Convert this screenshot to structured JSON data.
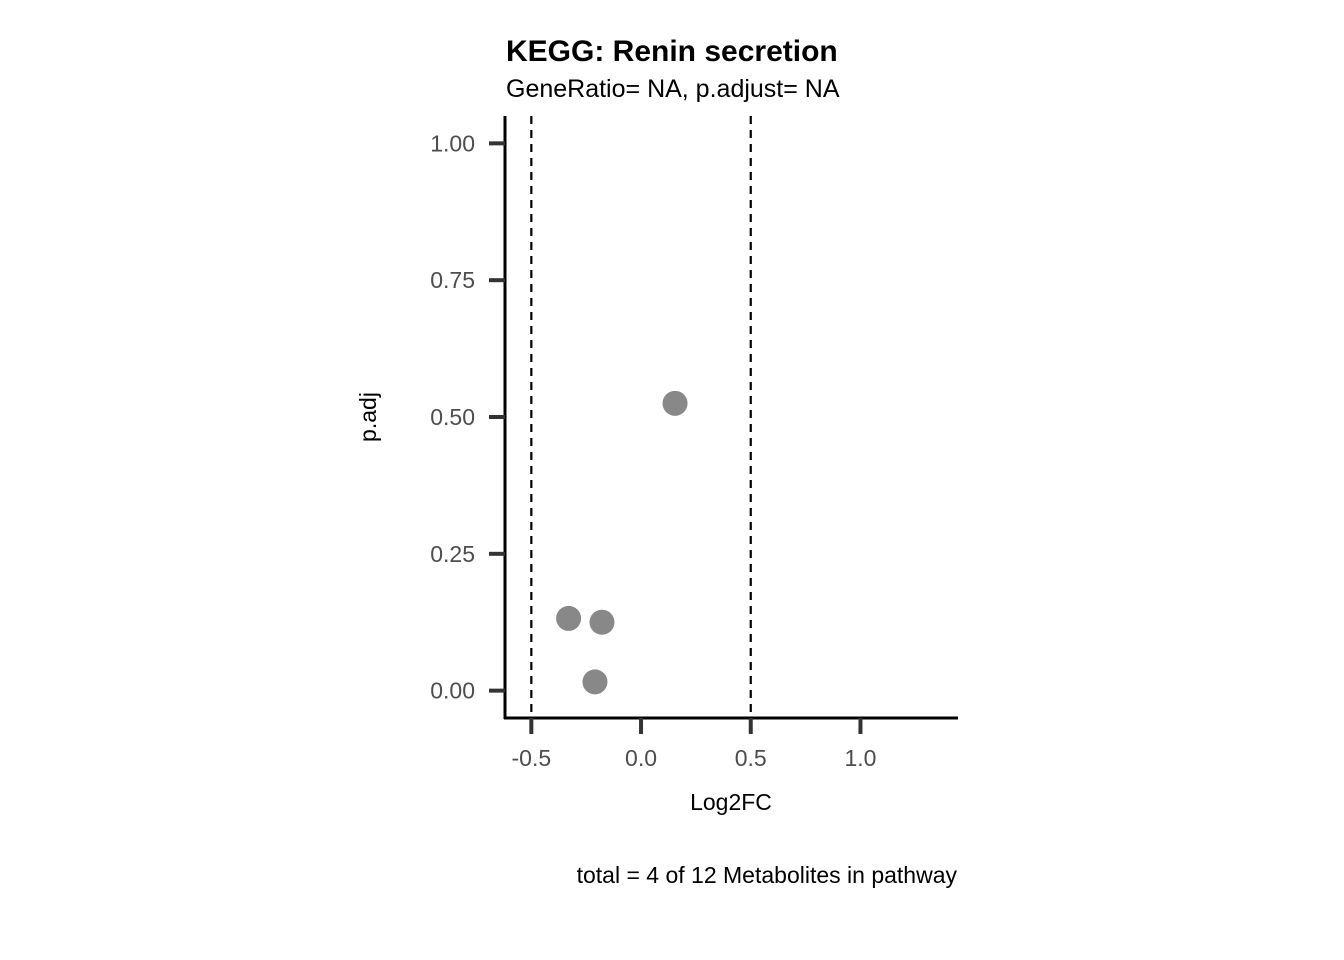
{
  "chart_data": {
    "type": "scatter",
    "title": "KEGG: Renin secretion",
    "subtitle": "GeneRatio= NA, p.adjust= NA",
    "xlabel": "Log2FC",
    "ylabel": "p.adj",
    "caption": "total = 4 of 12 Metabolites in pathway",
    "xlim": [
      -0.62,
      1.44
    ],
    "ylim": [
      -0.05,
      1.05
    ],
    "x_ticks": [
      -0.5,
      0.0,
      0.5,
      1.0
    ],
    "x_tick_labels": [
      "-0.5",
      "0.0",
      "0.5",
      "1.0"
    ],
    "y_ticks": [
      0.0,
      0.25,
      0.5,
      0.75,
      1.0
    ],
    "y_tick_labels": [
      "0.00",
      "0.25",
      "0.50",
      "0.75",
      "1.00"
    ],
    "threshold_lines_x": [
      -0.5,
      0.5
    ],
    "grid": false,
    "point_color": "#888888",
    "points": [
      {
        "x": 0.155,
        "y": 0.525
      },
      {
        "x": -0.33,
        "y": 0.132
      },
      {
        "x": -0.178,
        "y": 0.125
      },
      {
        "x": -0.21,
        "y": 0.016
      }
    ]
  }
}
